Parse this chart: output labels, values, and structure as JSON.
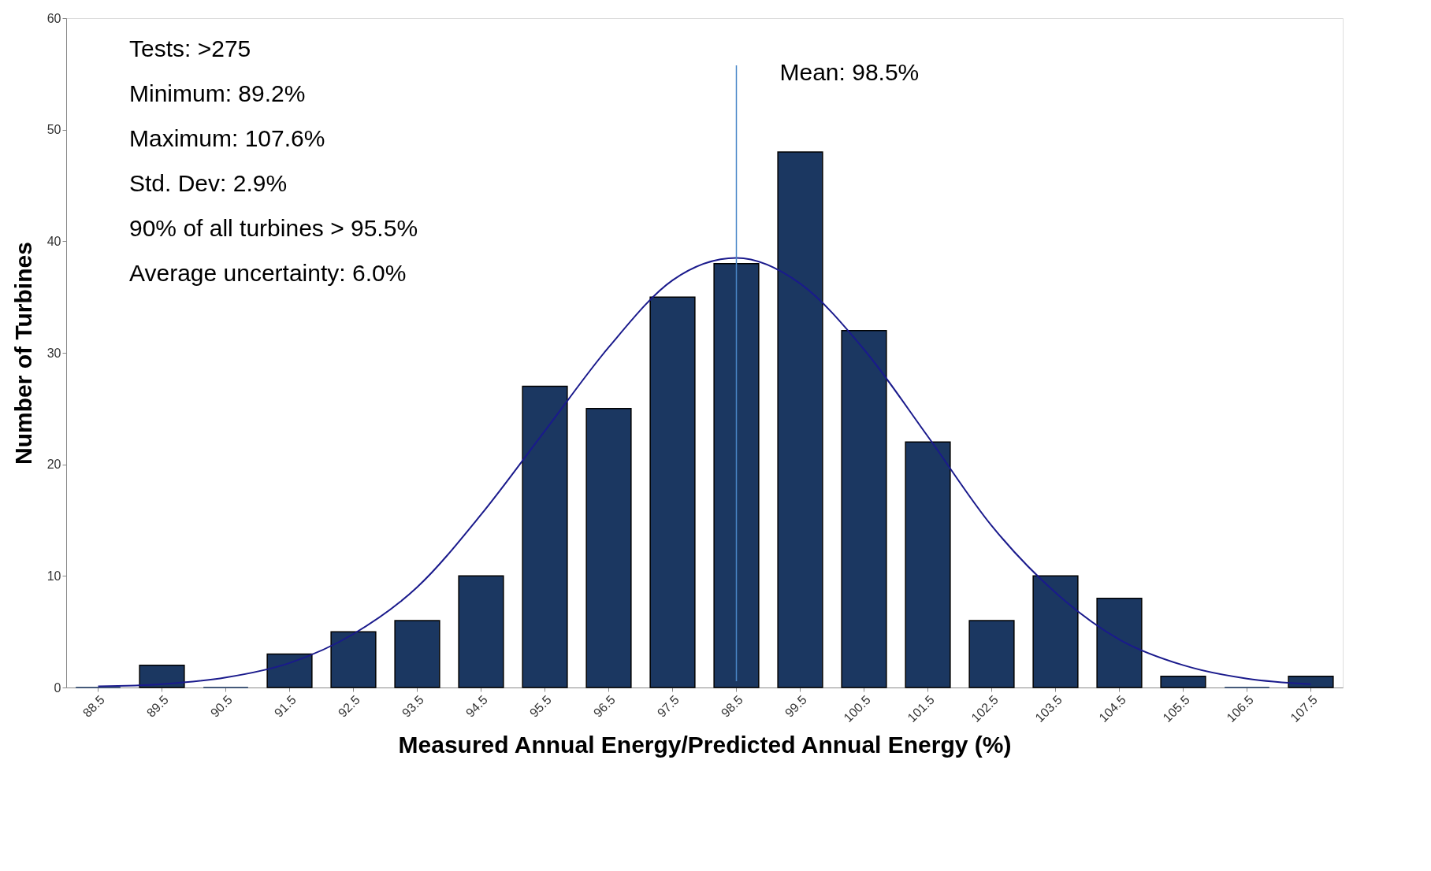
{
  "chart_data": {
    "type": "bar",
    "xlabel": "Measured Annual Energy/Predicted Annual Energy (%)",
    "ylabel": "Number of Turbines",
    "categories": [
      "88.5",
      "89.5",
      "90.5",
      "91.5",
      "92.5",
      "93.5",
      "94.5",
      "95.5",
      "96.5",
      "97.5",
      "98.5",
      "99.5",
      "100.5",
      "101.5",
      "102.5",
      "103.5",
      "104.5",
      "105.5",
      "106.5",
      "107.5"
    ],
    "series": [
      {
        "color": "#1b3761",
        "values": [
          0,
          2,
          0,
          3,
          5,
          6,
          10,
          27,
          25,
          35,
          38,
          48,
          32,
          22,
          6,
          10,
          8,
          1,
          0,
          1
        ]
      },
      {
        "type": "line",
        "color": "#1a1a8c",
        "values": [
          0.1,
          0.3,
          0.9,
          2.2,
          4.8,
          9,
          15.5,
          23,
          30.5,
          36.5,
          38.5,
          36.2,
          30.3,
          22.5,
          14.5,
          8.5,
          4.3,
          2,
          0.8,
          0.3
        ]
      }
    ],
    "ylim": [
      0,
      60
    ],
    "yticks": [
      0,
      10,
      20,
      30,
      40,
      50,
      60
    ],
    "grid": false,
    "marker": "none",
    "line_style": "solid",
    "ref_lines": [
      {
        "axis": "x",
        "value": "98.5",
        "label": "Mean:     98.5%",
        "color": "#4a86c8"
      }
    ],
    "annotations": [
      "Tests:                      >275",
      "Minimum:               89.2%",
      "Maximum:              107.6%",
      "Std. Dev:                2.9%",
      "90% of all turbines > 95.5%",
      "Average uncertainty:  6.0%"
    ]
  }
}
